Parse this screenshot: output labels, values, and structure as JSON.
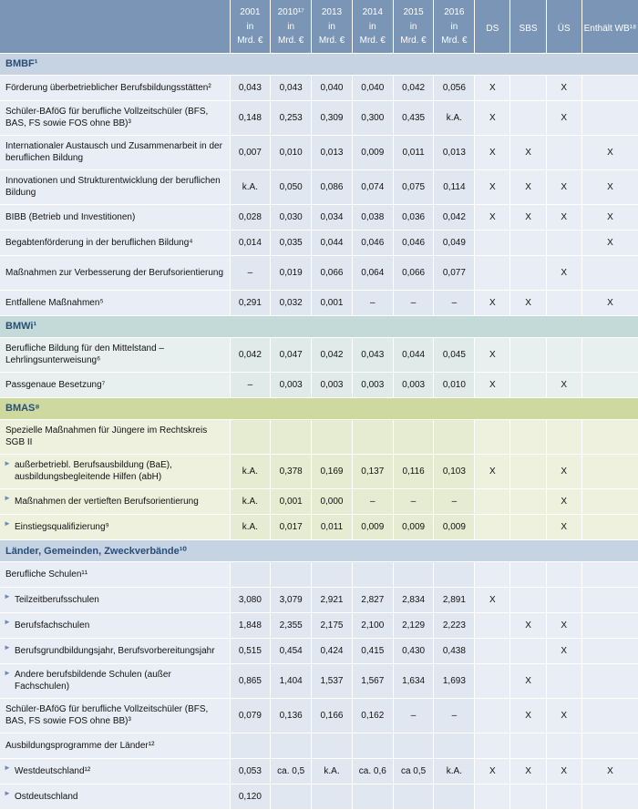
{
  "header": {
    "years": [
      "2001",
      "2010¹⁷",
      "2013",
      "2014",
      "2015",
      "2016"
    ],
    "unit_top": "in",
    "unit_bottom": "Mrd. €",
    "flags": [
      "DS",
      "SBS",
      "ÜS",
      "Enthält WB¹⁸"
    ]
  },
  "sections": [
    {
      "title": "BMBF¹",
      "color": "blue",
      "rows": [
        {
          "label": "Förderung überbetrieblicher Berufsbildungsstätten²",
          "vals": [
            "0,043",
            "0,043",
            "0,040",
            "0,040",
            "0,042",
            "0,056"
          ],
          "flags": [
            "X",
            "",
            "X",
            ""
          ]
        },
        {
          "label": "Schüler-BAföG für berufliche Vollzeitschüler (BFS, BAS, FS sowie FOS ohne BB)³",
          "tall": true,
          "vals": [
            "0,148",
            "0,253",
            "0,309",
            "0,300",
            "0,435",
            "k.A."
          ],
          "flags": [
            "X",
            "",
            "X",
            ""
          ]
        },
        {
          "label": "Internationaler Austausch und Zusammenarbeit in der beruflichen Bildung",
          "tall": true,
          "vals": [
            "0,007",
            "0,010",
            "0,013",
            "0,009",
            "0,011",
            "0,013"
          ],
          "flags": [
            "X",
            "X",
            "",
            "X"
          ]
        },
        {
          "label": "Innovationen und Strukturentwicklung der beruflichen Bildung",
          "tall": true,
          "vals": [
            "k.A.",
            "0,050",
            "0,086",
            "0,074",
            "0,075",
            "0,114"
          ],
          "flags": [
            "X",
            "X",
            "X",
            "X"
          ]
        },
        {
          "label": "BIBB (Betrieb und Investitionen)",
          "vals": [
            "0,028",
            "0,030",
            "0,034",
            "0,038",
            "0,036",
            "0,042"
          ],
          "flags": [
            "X",
            "X",
            "X",
            "X"
          ]
        },
        {
          "label": "Begabtenförderung in der beruflichen Bildung⁴",
          "vals": [
            "0,014",
            "0,035",
            "0,044",
            "0,046",
            "0,046",
            "0,049"
          ],
          "flags": [
            "",
            "",
            "",
            "X"
          ]
        },
        {
          "label": "Maßnahmen zur Verbesserung der Berufsorientierung",
          "tall": true,
          "vals": [
            "–",
            "0,019",
            "0,066",
            "0,064",
            "0,066",
            "0,077"
          ],
          "flags": [
            "",
            "",
            "X",
            ""
          ]
        },
        {
          "label": "Entfallene Maßnahmen⁵",
          "vals": [
            "0,291",
            "0,032",
            "0,001",
            "–",
            "–",
            "–"
          ],
          "flags": [
            "X",
            "X",
            "",
            "X"
          ]
        }
      ]
    },
    {
      "title": "BMWi¹",
      "color": "teal",
      "rows": [
        {
          "label": "Berufliche Bildung für den Mittelstand – Lehrlingsunterweisung⁶",
          "tall": true,
          "vals": [
            "0,042",
            "0,047",
            "0,042",
            "0,043",
            "0,044",
            "0,045"
          ],
          "flags": [
            "X",
            "",
            "",
            ""
          ]
        },
        {
          "label": "Passgenaue Besetzung⁷",
          "vals": [
            "–",
            "0,003",
            "0,003",
            "0,003",
            "0,003",
            "0,010"
          ],
          "flags": [
            "X",
            "",
            "X",
            ""
          ]
        }
      ]
    },
    {
      "title": "BMAS⁸",
      "color": "green",
      "rows": [
        {
          "label": "Spezielle Maßnahmen für Jüngere im Rechtskreis SGB II",
          "tall": true,
          "sub": true,
          "vals": [
            "",
            "",
            "",
            "",
            "",
            ""
          ],
          "flags": [
            "",
            "",
            "",
            ""
          ]
        },
        {
          "label": "außerbetriebl. Berufsausbildung (BaE), ausbildungsbegleitende Hilfen (abH)",
          "indent": true,
          "tall": true,
          "vals": [
            "k.A.",
            "0,378",
            "0,169",
            "0,137",
            "0,116",
            "0,103"
          ],
          "flags": [
            "X",
            "",
            "X",
            ""
          ]
        },
        {
          "label": "Maßnahmen der vertieften Berufsorientierung",
          "indent": true,
          "vals": [
            "k.A.",
            "0,001",
            "0,000",
            "–",
            "–",
            "–"
          ],
          "flags": [
            "",
            "",
            "X",
            ""
          ]
        },
        {
          "label": "Einstiegsqualifizierung⁹",
          "indent": true,
          "vals": [
            "k.A.",
            "0,017",
            "0,011",
            "0,009",
            "0,009",
            "0,009"
          ],
          "flags": [
            "",
            "",
            "X",
            ""
          ]
        }
      ]
    },
    {
      "title": "Länder, Gemeinden, Zweckverbände¹⁰",
      "color": "blue",
      "rows": [
        {
          "label": "Berufliche Schulen¹¹",
          "sub": true,
          "vals": [
            "",
            "",
            "",
            "",
            "",
            ""
          ],
          "flags": [
            "",
            "",
            "",
            ""
          ]
        },
        {
          "label": "Teilzeitberufsschulen",
          "indent": true,
          "vals": [
            "3,080",
            "3,079",
            "2,921",
            "2,827",
            "2,834",
            "2,891"
          ],
          "flags": [
            "X",
            "",
            "",
            ""
          ]
        },
        {
          "label": "Berufsfachschulen",
          "indent": true,
          "vals": [
            "1,848",
            "2,355",
            "2,175",
            "2,100",
            "2,129",
            "2,223"
          ],
          "flags": [
            "",
            "X",
            "X",
            ""
          ]
        },
        {
          "label": "Berufsgrundbildungsjahr, Berufsvorbereitungsjahr",
          "indent": true,
          "vals": [
            "0,515",
            "0,454",
            "0,424",
            "0,415",
            "0,430",
            "0,438"
          ],
          "flags": [
            "",
            "",
            "X",
            ""
          ]
        },
        {
          "label": "Andere berufsbildende Schulen (außer Fachschulen)",
          "indent": true,
          "tall": true,
          "vals": [
            "0,865",
            "1,404",
            "1,537",
            "1,567",
            "1,634",
            "1,693"
          ],
          "flags": [
            "",
            "X",
            "",
            ""
          ]
        },
        {
          "label": "Schüler-BAföG für berufliche Vollzeitschüler (BFS, BAS, FS sowie FOS ohne BB)³",
          "tall": true,
          "vals": [
            "0,079",
            "0,136",
            "0,166",
            "0,162",
            "–",
            "–"
          ],
          "flags": [
            "",
            "X",
            "X",
            ""
          ]
        },
        {
          "label": "Ausbildungsprogramme der Länder¹²",
          "sub": true,
          "vals": [
            "",
            "",
            "",
            "",
            "",
            ""
          ],
          "flags": [
            "",
            "",
            "",
            ""
          ]
        },
        {
          "label": "Westdeutschland¹²",
          "indent": true,
          "vals": [
            "0,053",
            "ca. 0,5",
            "k.A.",
            "ca. 0,6",
            "ca 0,5",
            "k.A."
          ],
          "flags": [
            "X",
            "X",
            "X",
            "X"
          ]
        },
        {
          "label": "Ostdeutschland",
          "indent": true,
          "vals": [
            "0,120",
            "",
            "",
            "",
            "",
            ""
          ],
          "flags": [
            "",
            "",
            "",
            ""
          ]
        }
      ]
    }
  ]
}
